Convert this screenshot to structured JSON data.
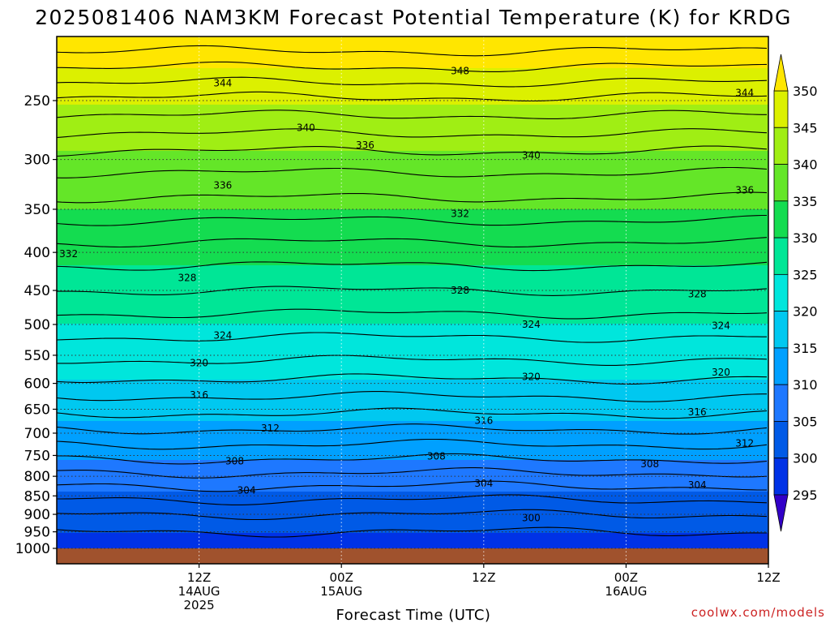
{
  "chart_data": {
    "type": "heatmap",
    "title": "2025081406 NAM3KM Forecast Potential Temperature (K) for KRDG",
    "xlabel": "Forecast Time (UTC)",
    "ylabel": "",
    "credit": "coolwx.com/models",
    "y_axis": {
      "ticks": [
        250,
        300,
        350,
        400,
        450,
        500,
        550,
        600,
        650,
        700,
        750,
        800,
        850,
        900,
        950,
        1000
      ],
      "labels": [
        "250",
        "300",
        "350",
        "400",
        "450",
        "500",
        "550",
        "600",
        "650",
        "700",
        "750",
        "800",
        "850",
        "900",
        "950",
        "1000"
      ],
      "range": [
        210,
        1010
      ]
    },
    "x_axis": {
      "range_hours": [
        -6,
        54
      ],
      "ticks": [
        {
          "hour": 6,
          "lines": [
            "12Z",
            "14AUG",
            "2025"
          ]
        },
        {
          "hour": 18,
          "lines": [
            "00Z",
            "15AUG"
          ]
        },
        {
          "hour": 30,
          "lines": [
            "12Z"
          ]
        },
        {
          "hour": 42,
          "lines": [
            "00Z",
            "16AUG"
          ]
        },
        {
          "hour": 54,
          "lines": [
            "12Z"
          ]
        }
      ]
    },
    "colorbar": {
      "levels": [
        295,
        300,
        305,
        310,
        315,
        320,
        325,
        330,
        335,
        340,
        345,
        350
      ],
      "labels": [
        "295",
        "300",
        "305",
        "310",
        "315",
        "320",
        "325",
        "330",
        "335",
        "340",
        "345",
        "350"
      ],
      "colors": [
        "#3200c8",
        "#0032e6",
        "#005ae6",
        "#1e78ff",
        "#00a0ff",
        "#00c8f0",
        "#00e6dc",
        "#00e696",
        "#14dc50",
        "#64e628",
        "#a0ee14",
        "#dcf000",
        "#ffe600"
      ],
      "extend": "both"
    },
    "contours": {
      "interval": 2,
      "profile": [
        {
          "p": 220,
          "theta": 351
        },
        {
          "p": 250,
          "theta": 345.5
        },
        {
          "p": 300,
          "theta": 339
        },
        {
          "p": 350,
          "theta": 335
        },
        {
          "p": 400,
          "theta": 331
        },
        {
          "p": 450,
          "theta": 328
        },
        {
          "p": 500,
          "theta": 325
        },
        {
          "p": 550,
          "theta": 322.5
        },
        {
          "p": 600,
          "theta": 319.5
        },
        {
          "p": 650,
          "theta": 316.5
        },
        {
          "p": 700,
          "theta": 313.5
        },
        {
          "p": 750,
          "theta": 310.5
        },
        {
          "p": 800,
          "theta": 307.5
        },
        {
          "p": 850,
          "theta": 304.5
        },
        {
          "p": 900,
          "theta": 302
        },
        {
          "p": 950,
          "theta": 300
        },
        {
          "p": 1000,
          "theta": 298.5
        }
      ],
      "labels": [
        {
          "value": "348",
          "hour": 28,
          "p": 228
        },
        {
          "value": "344",
          "hour": 8,
          "p": 237
        },
        {
          "value": "344",
          "hour": 52,
          "p": 244
        },
        {
          "value": "340",
          "hour": 15,
          "p": 272
        },
        {
          "value": "340",
          "hour": 34,
          "p": 296
        },
        {
          "value": "336",
          "hour": 20,
          "p": 287
        },
        {
          "value": "336",
          "hour": 52,
          "p": 330
        },
        {
          "value": "336",
          "hour": 8,
          "p": 325
        },
        {
          "value": "332",
          "hour": 28,
          "p": 355
        },
        {
          "value": "332",
          "hour": -5,
          "p": 402
        },
        {
          "value": "328",
          "hour": 5,
          "p": 433
        },
        {
          "value": "328",
          "hour": 28,
          "p": 450
        },
        {
          "value": "328",
          "hour": 48,
          "p": 455
        },
        {
          "value": "324",
          "hour": 8,
          "p": 517
        },
        {
          "value": "324",
          "hour": 34,
          "p": 500
        },
        {
          "value": "324",
          "hour": 50,
          "p": 502
        },
        {
          "value": "320",
          "hour": 6,
          "p": 563
        },
        {
          "value": "320",
          "hour": 34,
          "p": 588
        },
        {
          "value": "320",
          "hour": 50,
          "p": 580
        },
        {
          "value": "316",
          "hour": 6,
          "p": 622
        },
        {
          "value": "316",
          "hour": 30,
          "p": 673
        },
        {
          "value": "316",
          "hour": 48,
          "p": 656
        },
        {
          "value": "312",
          "hour": 12,
          "p": 690
        },
        {
          "value": "312",
          "hour": 52,
          "p": 722
        },
        {
          "value": "308",
          "hour": 9,
          "p": 763
        },
        {
          "value": "308",
          "hour": 26,
          "p": 752
        },
        {
          "value": "308",
          "hour": 44,
          "p": 770
        },
        {
          "value": "304",
          "hour": 10,
          "p": 836
        },
        {
          "value": "304",
          "hour": 30,
          "p": 818
        },
        {
          "value": "304",
          "hour": 48,
          "p": 822
        },
        {
          "value": "300",
          "hour": 34,
          "p": 910
        }
      ]
    },
    "ground": {
      "color": "#a0522d",
      "p_top": 1000
    }
  }
}
